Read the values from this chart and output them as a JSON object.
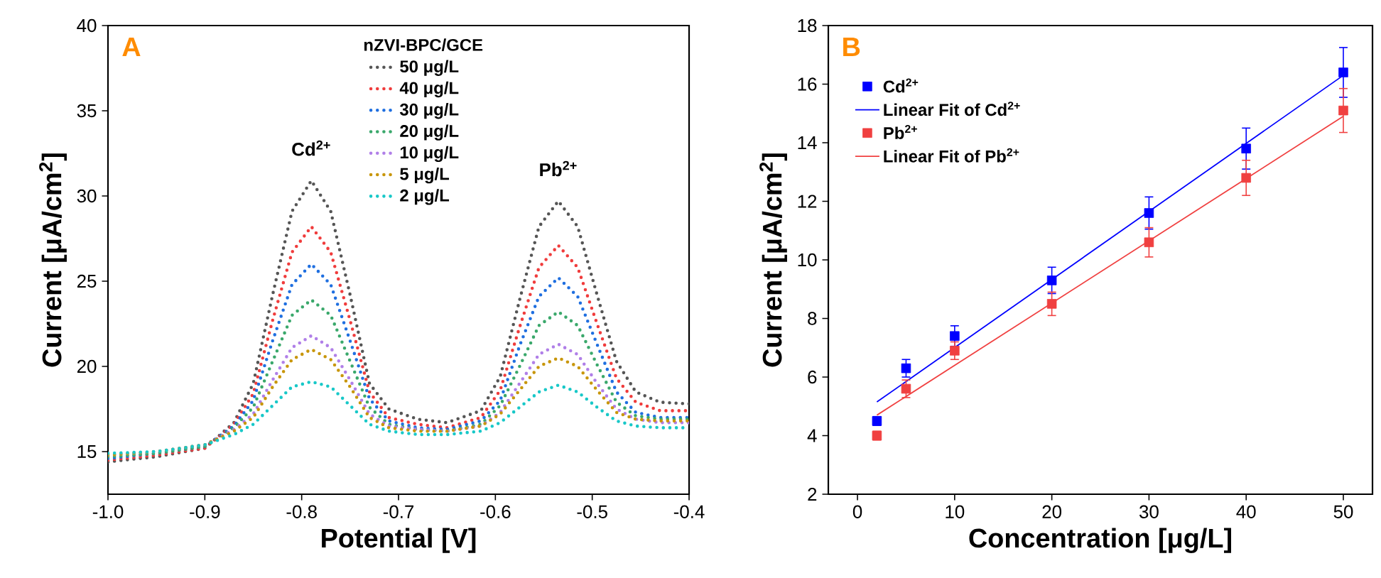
{
  "chart_data": [
    {
      "type": "line",
      "xlabel": "Potential [V]",
      "ylabel": "Current [μA/cm$^{2}$]",
      "legend_title": "nZVI-BPC/GCE",
      "legend": "top",
      "line_style": "dotted",
      "annotations": [
        "A",
        {
          "text": "Cd$^{2+}$",
          "x": -0.79,
          "y": 30.9
        },
        {
          "text": "Pb$^{2+}$",
          "x": -0.535,
          "y": 29.7
        }
      ],
      "xlim": [
        -1.0,
        -0.4
      ],
      "ylim": [
        12.5,
        40
      ],
      "xticks": [
        {
          "value": -1.0,
          "label": "-1.0"
        },
        {
          "value": -0.9,
          "label": "-0.9"
        },
        {
          "value": -0.8,
          "label": "-0.8"
        },
        {
          "value": -0.7,
          "label": "-0.7"
        },
        {
          "value": -0.6,
          "label": "-0.6"
        },
        {
          "value": -0.5,
          "label": "-0.5"
        },
        {
          "value": -0.4,
          "label": "-0.4"
        }
      ],
      "yticks": [
        15,
        20,
        25,
        30,
        35,
        40
      ],
      "x": [
        -1.0,
        -0.95,
        -0.9,
        -0.87,
        -0.85,
        -0.83,
        -0.81,
        -0.79,
        -0.77,
        -0.75,
        -0.73,
        -0.71,
        -0.68,
        -0.65,
        -0.615,
        -0.595,
        -0.575,
        -0.555,
        -0.535,
        -0.515,
        -0.495,
        -0.475,
        -0.455,
        -0.43,
        -0.4
      ],
      "series": [
        {
          "name": "50 μg/L",
          "color": "#555555",
          "values": [
            14.4,
            14.7,
            15.2,
            16.7,
            19.0,
            24.2,
            29.1,
            30.9,
            29.1,
            24.2,
            19.0,
            17.5,
            16.9,
            16.7,
            17.4,
            19.4,
            23.9,
            28.2,
            29.7,
            28.2,
            24.2,
            20.3,
            18.5,
            17.9,
            17.8
          ]
        },
        {
          "name": "40 μg/L",
          "color": "#f03c3c",
          "values": [
            14.5,
            14.8,
            15.2,
            16.6,
            18.4,
            22.7,
            26.7,
            28.2,
            26.7,
            22.7,
            18.5,
            17.0,
            16.6,
            16.4,
            17.0,
            18.6,
            22.3,
            25.8,
            27.1,
            25.8,
            22.5,
            19.3,
            17.9,
            17.4,
            17.4
          ]
        },
        {
          "name": "30 μg/L",
          "color": "#1f6fe0",
          "values": [
            14.6,
            14.9,
            15.3,
            16.5,
            18.0,
            21.5,
            24.8,
            26.0,
            24.8,
            21.5,
            18.1,
            16.8,
            16.4,
            16.3,
            16.8,
            18.0,
            21.2,
            24.1,
            25.2,
            24.1,
            21.3,
            18.5,
            17.3,
            17.0,
            17.0
          ]
        },
        {
          "name": "20 μg/L",
          "color": "#3aa86b",
          "values": [
            14.7,
            14.9,
            15.3,
            16.4,
            17.6,
            20.3,
            23.0,
            23.9,
            23.0,
            20.3,
            17.6,
            16.6,
            16.3,
            16.2,
            16.6,
            17.7,
            20.0,
            22.4,
            23.2,
            22.4,
            20.1,
            17.9,
            17.1,
            16.9,
            16.9
          ]
        },
        {
          "name": "10 μg/L",
          "color": "#b07fe8",
          "values": [
            14.8,
            15.0,
            15.4,
            16.3,
            17.2,
            19.2,
            21.1,
            21.8,
            21.1,
            19.2,
            17.2,
            16.5,
            16.3,
            16.2,
            16.5,
            17.3,
            19.0,
            20.7,
            21.3,
            20.7,
            19.0,
            17.5,
            16.9,
            16.7,
            16.7
          ]
        },
        {
          "name": "5 μg/L",
          "color": "#c8960a",
          "values": [
            14.8,
            15.0,
            15.4,
            16.2,
            17.0,
            18.8,
            20.4,
            21.0,
            20.4,
            18.8,
            17.0,
            16.4,
            16.2,
            16.2,
            16.5,
            17.2,
            18.6,
            20.0,
            20.5,
            20.0,
            18.6,
            17.3,
            16.9,
            16.8,
            16.8
          ]
        },
        {
          "name": "2 μg/L",
          "color": "#18c8c8",
          "values": [
            14.9,
            15.0,
            15.4,
            16.0,
            16.6,
            17.7,
            18.8,
            19.1,
            18.8,
            17.7,
            16.6,
            16.2,
            16.0,
            16.0,
            16.2,
            16.7,
            17.6,
            18.5,
            18.9,
            18.5,
            17.6,
            16.8,
            16.5,
            16.4,
            16.4
          ]
        }
      ]
    },
    {
      "type": "scatter",
      "xlabel": "Concentration [μg/L]",
      "ylabel": "Current [μA/cm$^{2}$]",
      "legend": "top left",
      "annotations": [
        "B"
      ],
      "xlim": [
        -3,
        53
      ],
      "ylim": [
        2,
        18
      ],
      "xticks": [
        0,
        10,
        20,
        30,
        40,
        50
      ],
      "yticks": [
        2,
        4,
        6,
        8,
        10,
        12,
        14,
        16,
        18
      ],
      "series": [
        {
          "name": "Cd$^{2+}$",
          "marker": "square",
          "color": "#0000ff",
          "x": [
            2,
            5,
            10,
            20,
            30,
            40,
            50
          ],
          "values": [
            4.5,
            6.3,
            7.4,
            9.3,
            11.6,
            13.8,
            16.4
          ],
          "errors": [
            0.15,
            0.3,
            0.35,
            0.45,
            0.55,
            0.7,
            0.85
          ]
        },
        {
          "name": "Linear Fit of Cd$^{2+}$",
          "type": "line",
          "marker": "none",
          "color": "#0000ff",
          "x": [
            2,
            50
          ],
          "values": [
            5.15,
            16.3
          ]
        },
        {
          "name": "Pb$^{2+}$",
          "marker": "square",
          "color": "#f04040",
          "x": [
            2,
            5,
            10,
            20,
            30,
            40,
            50
          ],
          "values": [
            4.0,
            5.6,
            6.9,
            8.5,
            10.6,
            12.8,
            15.1
          ],
          "errors": [
            0.15,
            0.3,
            0.3,
            0.4,
            0.5,
            0.6,
            0.75
          ]
        },
        {
          "name": "Linear Fit of Pb$^{2+}$",
          "type": "line",
          "marker": "none",
          "color": "#f04040",
          "x": [
            2,
            50
          ],
          "values": [
            4.7,
            14.9
          ]
        }
      ]
    }
  ]
}
